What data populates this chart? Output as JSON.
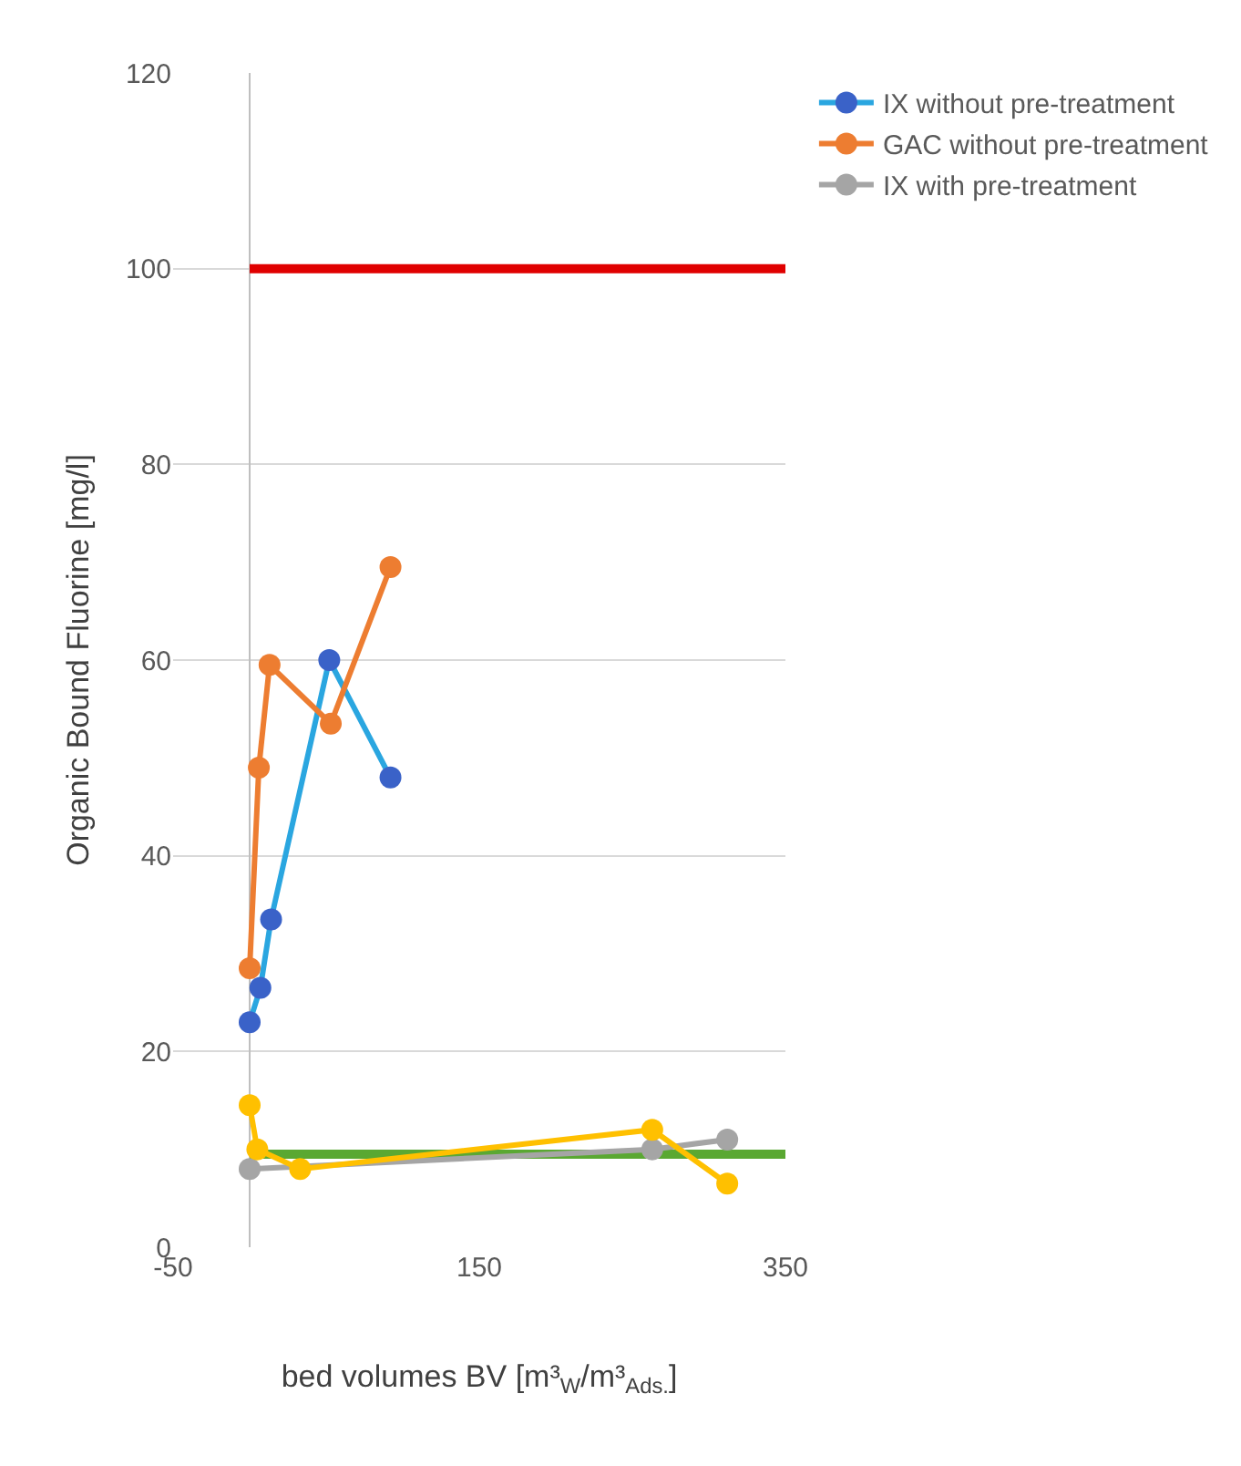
{
  "chart_data": {
    "type": "line",
    "ylabel": "Organic Bound Fluorine [mg/l]",
    "xlabel": "bed volumes BV [m³$_{W}$/m³$_{Ads.}$]",
    "xlim": [
      -50,
      350
    ],
    "xticks": [
      -50,
      150,
      350
    ],
    "ylim": [
      0,
      120
    ],
    "yticks": [
      0,
      20,
      40,
      60,
      80,
      100,
      120
    ],
    "grid": "y",
    "legend": "top right",
    "marker": "circle",
    "series": [
      {
        "name": "IX without pre-treatment",
        "color": "#2aa6e0",
        "colors": [
          "#3a62c8",
          "#3a62c8",
          "#3a62c8",
          "#3a62c8",
          "#3a62c8"
        ],
        "x": [
          0,
          7,
          14,
          52,
          92
        ],
        "values": [
          23,
          26.5,
          33.5,
          60,
          48
        ]
      },
      {
        "name": "GAC without pre-treatment",
        "color": "#ed7d31",
        "x": [
          0,
          6,
          13,
          53,
          92
        ],
        "values": [
          28.5,
          49,
          59.5,
          53.5,
          69.5
        ]
      },
      {
        "name": "IX with pre-treatment",
        "color": "#a5a5a5",
        "x": [
          0,
          263,
          312
        ],
        "values": [
          8,
          10,
          11
        ]
      },
      {
        "color": "#ffc000",
        "x": [
          0,
          5,
          33,
          263,
          312
        ],
        "values": [
          14.5,
          10,
          8,
          12,
          6.5
        ]
      }
    ],
    "ref_lines": [
      {
        "axis": "y",
        "value": 100,
        "color": "#e00000"
      },
      {
        "axis": "y",
        "value": 9.5,
        "color": "#5aa832"
      }
    ]
  }
}
